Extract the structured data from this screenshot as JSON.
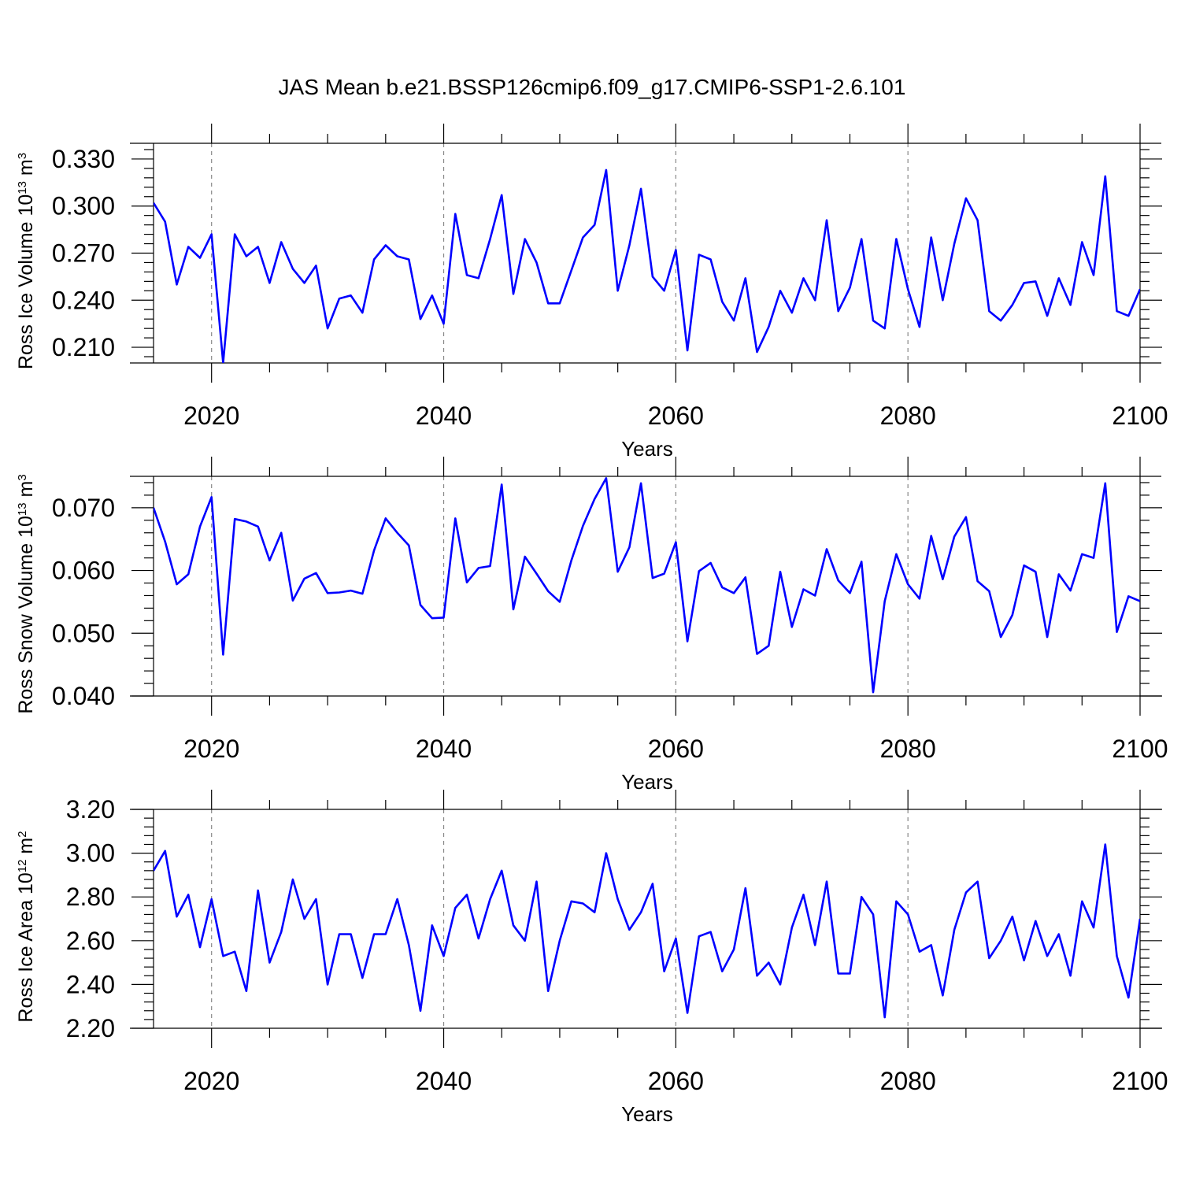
{
  "title": "JAS Mean b.e21.BSSP126cmip6.f09_g17.CMIP6-SSP1-2.6.101",
  "colors": {
    "line": "#0000ff",
    "axis": "#000000",
    "grid": "#888888"
  },
  "chart_data": [
    {
      "type": "line",
      "xlabel": "Years",
      "ylabel": {
        "main": "Ross Ice Volume 10",
        "exp": "13",
        "unit": " m",
        "unit_exp": "3"
      },
      "xlim": [
        2015,
        2100
      ],
      "ylim": [
        0.2,
        0.34
      ],
      "xticks": [
        2020,
        2040,
        2060,
        2080,
        2100
      ],
      "xtick_labels": [
        "2020",
        "2040",
        "2060",
        "2080",
        "2100"
      ],
      "yticks": [
        0.21,
        0.24,
        0.27,
        0.3,
        0.33
      ],
      "ytick_labels": [
        "0.210",
        "0.240",
        "0.270",
        "0.300",
        "0.330"
      ],
      "series": [
        {
          "x_start": 2015,
          "values": [
            0.302,
            0.29,
            0.25,
            0.274,
            0.267,
            0.282,
            0.2,
            0.282,
            0.268,
            0.274,
            0.251,
            0.277,
            0.26,
            0.251,
            0.262,
            0.222,
            0.241,
            0.243,
            0.232,
            0.266,
            0.275,
            0.268,
            0.266,
            0.228,
            0.243,
            0.225,
            0.295,
            0.256,
            0.254,
            0.279,
            0.307,
            0.244,
            0.279,
            0.264,
            0.238,
            0.238,
            0.259,
            0.28,
            0.288,
            0.323,
            0.246,
            0.275,
            0.311,
            0.255,
            0.246,
            0.272,
            0.208,
            0.269,
            0.266,
            0.239,
            0.227,
            0.254,
            0.207,
            0.223,
            0.246,
            0.232,
            0.254,
            0.24,
            0.291,
            0.233,
            0.248,
            0.279,
            0.227,
            0.222,
            0.279,
            0.247,
            0.223,
            0.28,
            0.24,
            0.276,
            0.305,
            0.291,
            0.233,
            0.227,
            0.237,
            0.251,
            0.252,
            0.23,
            0.254,
            0.237,
            0.277,
            0.256,
            0.319,
            0.233,
            0.23,
            0.247
          ]
        }
      ]
    },
    {
      "type": "line",
      "xlabel": "Years",
      "ylabel": {
        "main": "Ross Snow Volume 10",
        "exp": "13",
        "unit": " m",
        "unit_exp": "3"
      },
      "xlim": [
        2015,
        2100
      ],
      "ylim": [
        0.04,
        0.075
      ],
      "xticks": [
        2020,
        2040,
        2060,
        2080,
        2100
      ],
      "xtick_labels": [
        "2020",
        "2040",
        "2060",
        "2080",
        "2100"
      ],
      "yticks": [
        0.04,
        0.05,
        0.06,
        0.07
      ],
      "ytick_labels": [
        "0.040",
        "0.050",
        "0.060",
        "0.070"
      ],
      "series": [
        {
          "x_start": 2015,
          "values": [
            0.07,
            0.0646,
            0.0578,
            0.0594,
            0.067,
            0.0717,
            0.0466,
            0.0682,
            0.0678,
            0.067,
            0.0616,
            0.066,
            0.0552,
            0.0587,
            0.0596,
            0.0564,
            0.0565,
            0.0568,
            0.0563,
            0.0632,
            0.0683,
            0.066,
            0.064,
            0.0545,
            0.0524,
            0.0525,
            0.0683,
            0.0581,
            0.0604,
            0.0607,
            0.0737,
            0.0538,
            0.0622,
            0.0595,
            0.0567,
            0.055,
            0.0616,
            0.0671,
            0.0714,
            0.0747,
            0.0598,
            0.0637,
            0.0739,
            0.0588,
            0.0595,
            0.0645,
            0.0487,
            0.0599,
            0.0612,
            0.0573,
            0.0564,
            0.0589,
            0.0467,
            0.048,
            0.0598,
            0.051,
            0.057,
            0.056,
            0.0634,
            0.0584,
            0.0564,
            0.0614,
            0.0406,
            0.0551,
            0.0626,
            0.0578,
            0.0555,
            0.0655,
            0.0586,
            0.0654,
            0.0685,
            0.0583,
            0.0567,
            0.0494,
            0.0529,
            0.0608,
            0.0598,
            0.0494,
            0.0594,
            0.0568,
            0.0626,
            0.062,
            0.0739,
            0.0502,
            0.0559,
            0.0551
          ]
        }
      ]
    },
    {
      "type": "line",
      "xlabel": "Years",
      "ylabel": {
        "main": "Ross Ice Area 10",
        "exp": "12",
        "unit": " m",
        "unit_exp": "2"
      },
      "xlim": [
        2015,
        2100
      ],
      "ylim": [
        2.2,
        3.2
      ],
      "xticks": [
        2020,
        2040,
        2060,
        2080,
        2100
      ],
      "xtick_labels": [
        "2020",
        "2040",
        "2060",
        "2080",
        "2100"
      ],
      "yticks": [
        2.2,
        2.4,
        2.6,
        2.8,
        3.0,
        3.2
      ],
      "ytick_labels": [
        "2.20",
        "2.40",
        "2.60",
        "2.80",
        "3.00",
        "3.20"
      ],
      "series": [
        {
          "x_start": 2015,
          "values": [
            2.92,
            3.01,
            2.71,
            2.81,
            2.57,
            2.79,
            2.53,
            2.55,
            2.37,
            2.83,
            2.5,
            2.64,
            2.88,
            2.7,
            2.79,
            2.4,
            2.63,
            2.63,
            2.43,
            2.63,
            2.63,
            2.79,
            2.58,
            2.28,
            2.67,
            2.53,
            2.75,
            2.81,
            2.61,
            2.79,
            2.92,
            2.67,
            2.6,
            2.87,
            2.37,
            2.6,
            2.78,
            2.77,
            2.73,
            3.0,
            2.79,
            2.65,
            2.73,
            2.86,
            2.46,
            2.61,
            2.27,
            2.62,
            2.64,
            2.46,
            2.56,
            2.84,
            2.44,
            2.5,
            2.4,
            2.66,
            2.81,
            2.58,
            2.87,
            2.45,
            2.45,
            2.8,
            2.72,
            2.25,
            2.78,
            2.72,
            2.55,
            2.58,
            2.35,
            2.65,
            2.82,
            2.87,
            2.52,
            2.6,
            2.71,
            2.51,
            2.69,
            2.53,
            2.63,
            2.44,
            2.78,
            2.66,
            3.04,
            2.53,
            2.34,
            2.7
          ]
        }
      ]
    }
  ]
}
